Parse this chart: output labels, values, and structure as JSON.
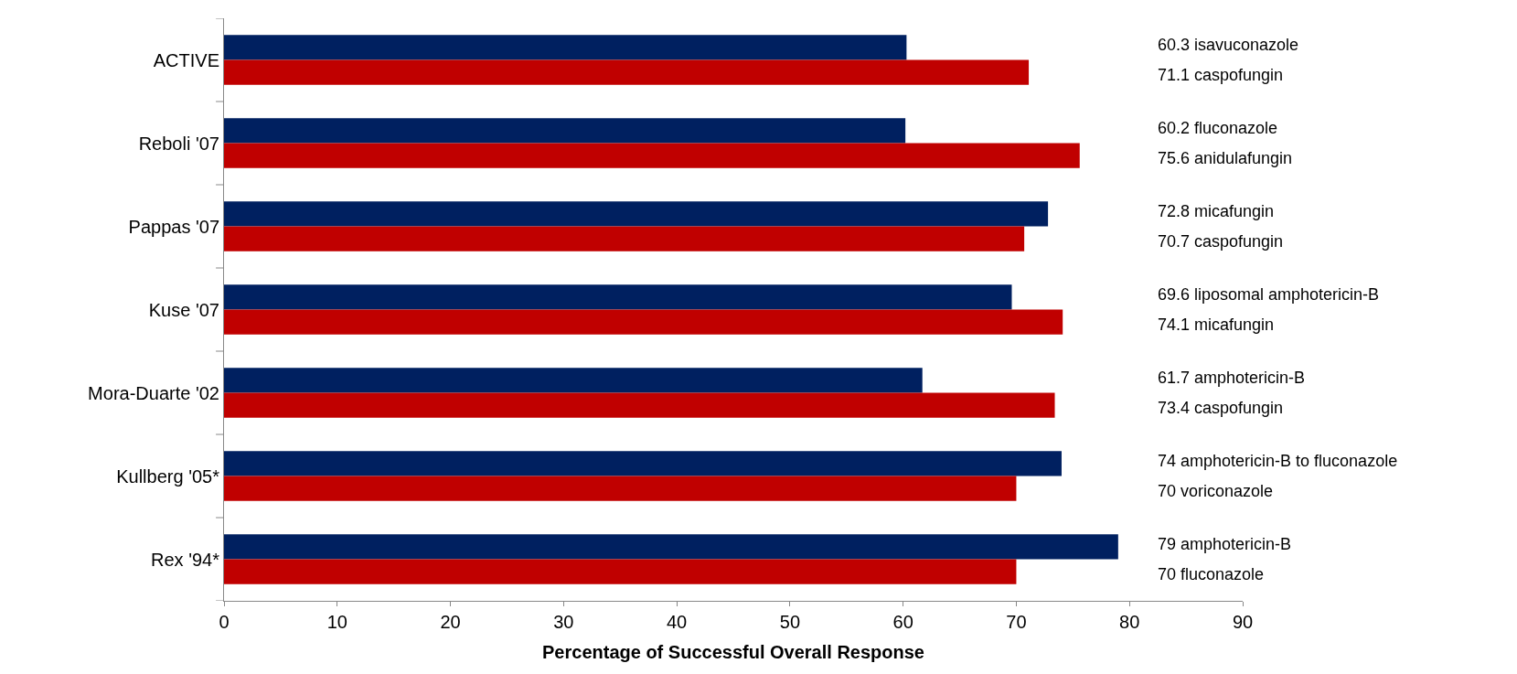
{
  "chart_data": {
    "type": "bar",
    "orientation": "horizontal",
    "xlabel": "Percentage of Successful Overall Response",
    "categories": [
      "ACTIVE",
      "Reboli '07",
      "Pappas '07",
      "Kuse '07",
      "Mora-Duarte '02",
      "Kullberg '05*",
      "Rex '94*"
    ],
    "series": [
      {
        "color": "#002060",
        "values": [
          60.3,
          60.2,
          72.8,
          69.6,
          61.7,
          74,
          79
        ]
      },
      {
        "color": "#c00000",
        "values": [
          71.1,
          75.6,
          70.7,
          74.1,
          73.4,
          70,
          70
        ]
      }
    ],
    "annotations": [
      "60.3 isavuconazole",
      "71.1 caspofungin",
      "60.2 fluconazole",
      "75.6 anidulafungin",
      "72.8 micafungin",
      "70.7 caspofungin",
      "69.6 liposomal amphotericin-B",
      "74.1 micafungin",
      "61.7 amphotericin-B",
      "73.4 caspofungin",
      "74 amphotericin-B to fluconazole",
      "70 voriconazole",
      "79 amphotericin-B",
      "70 fluconazole"
    ],
    "xlim": [
      0,
      90
    ],
    "xticks": [
      0,
      10,
      20,
      30,
      40,
      50,
      60,
      70,
      80,
      90
    ]
  }
}
